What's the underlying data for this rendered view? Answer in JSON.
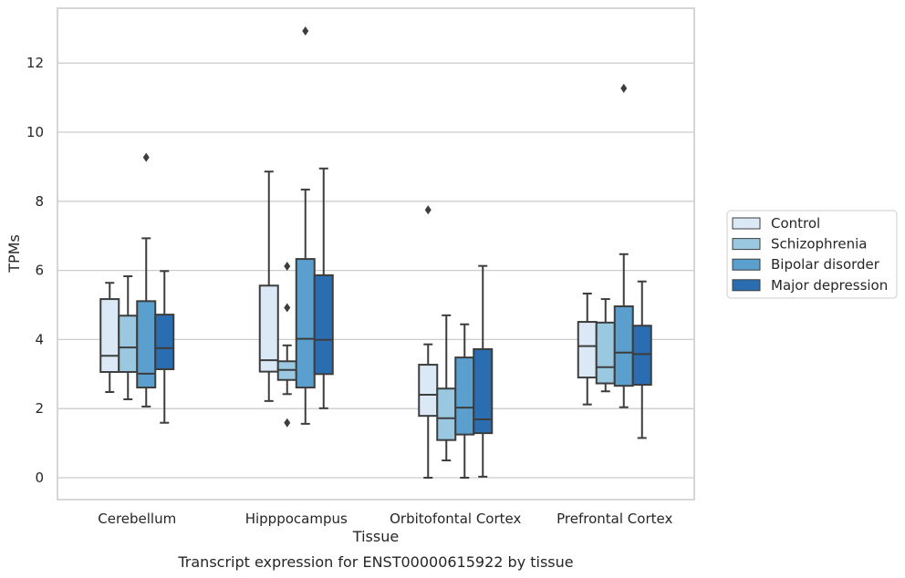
{
  "chart_data": {
    "type": "box",
    "caption": "Transcript expression for ENST00000615922 by tissue",
    "xlabel": "Tissue",
    "ylabel": "TPMs",
    "ylim": [
      -0.6,
      13.6
    ],
    "yticks": [
      0,
      2,
      4,
      6,
      8,
      10,
      12
    ],
    "grid": "horizontal",
    "legend_position": "right",
    "categories": [
      "Cerebellum",
      "Hipppocampus",
      "Orbitofontal Cortex",
      "Prefrontal Cortex"
    ],
    "series": [
      {
        "name": "Control",
        "color": "#dbe9f6",
        "boxes": [
          {
            "whislo": 2.48,
            "q1": 3.06,
            "med": 3.53,
            "q3": 5.17,
            "whishi": 5.64,
            "fliers": []
          },
          {
            "whislo": 2.22,
            "q1": 3.07,
            "med": 3.4,
            "q3": 5.56,
            "whishi": 8.86,
            "fliers": []
          },
          {
            "whislo": 0.0,
            "q1": 1.79,
            "med": 2.4,
            "q3": 3.27,
            "whishi": 3.86,
            "fliers": [
              7.75
            ]
          },
          {
            "whislo": 2.12,
            "q1": 2.9,
            "med": 3.81,
            "q3": 4.51,
            "whishi": 5.33,
            "fliers": []
          }
        ]
      },
      {
        "name": "Schizophrenia",
        "color": "#9ac8e0",
        "boxes": [
          {
            "whislo": 2.27,
            "q1": 3.06,
            "med": 3.77,
            "q3": 4.69,
            "whishi": 5.83,
            "fliers": []
          },
          {
            "whislo": 2.42,
            "q1": 2.83,
            "med": 3.12,
            "q3": 3.37,
            "whishi": 3.83,
            "fliers": [
              6.12,
              4.92,
              1.59
            ]
          },
          {
            "whislo": 0.5,
            "q1": 1.09,
            "med": 1.72,
            "q3": 2.58,
            "whishi": 4.7,
            "fliers": []
          },
          {
            "whislo": 2.5,
            "q1": 2.73,
            "med": 3.2,
            "q3": 4.49,
            "whishi": 5.17,
            "fliers": []
          }
        ]
      },
      {
        "name": "Bipolar disorder",
        "color": "#5a9fcd",
        "boxes": [
          {
            "whislo": 2.06,
            "q1": 2.61,
            "med": 3.01,
            "q3": 5.11,
            "whishi": 6.93,
            "fliers": [
              9.27
            ]
          },
          {
            "whislo": 1.56,
            "q1": 2.61,
            "med": 4.02,
            "q3": 6.33,
            "whishi": 8.34,
            "fliers": [
              12.93
            ]
          },
          {
            "whislo": 0.0,
            "q1": 1.25,
            "med": 2.03,
            "q3": 3.48,
            "whishi": 4.44,
            "fliers": []
          },
          {
            "whislo": 2.04,
            "q1": 2.66,
            "med": 3.62,
            "q3": 4.96,
            "whishi": 6.47,
            "fliers": [
              11.27
            ]
          }
        ]
      },
      {
        "name": "Major depression",
        "color": "#2a6eb1",
        "boxes": [
          {
            "whislo": 1.59,
            "q1": 3.14,
            "med": 3.75,
            "q3": 4.72,
            "whishi": 5.98,
            "fliers": []
          },
          {
            "whislo": 2.01,
            "q1": 3.0,
            "med": 3.99,
            "q3": 5.86,
            "whishi": 8.95,
            "fliers": []
          },
          {
            "whislo": 0.03,
            "q1": 1.29,
            "med": 1.69,
            "q3": 3.72,
            "whishi": 6.13,
            "fliers": []
          },
          {
            "whislo": 1.15,
            "q1": 2.69,
            "med": 3.58,
            "q3": 4.4,
            "whishi": 5.68,
            "fliers": []
          }
        ]
      }
    ]
  }
}
